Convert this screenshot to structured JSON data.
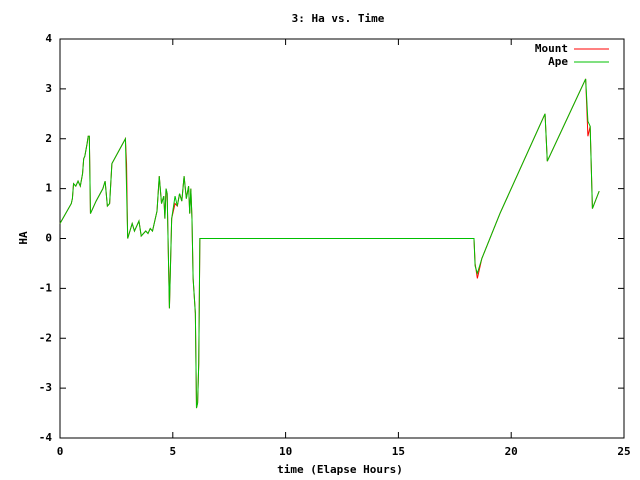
{
  "chart_data": {
    "type": "line",
    "title": "3: Ha vs. Time",
    "x_label": "time (Elapse Hours)",
    "y_label": "HA",
    "x": [
      0,
      0.5,
      0.55,
      0.6,
      0.7,
      0.8,
      0.9,
      1.0,
      1.05,
      1.1,
      1.2,
      1.25,
      1.3,
      1.35,
      1.6,
      1.9,
      2.0,
      2.1,
      2.2,
      2.3,
      2.9,
      2.95,
      3.0,
      3.2,
      3.3,
      3.5,
      3.6,
      3.8,
      3.9,
      4.0,
      4.1,
      4.3,
      4.4,
      4.5,
      4.6,
      4.65,
      4.7,
      4.75,
      4.85,
      4.95,
      5.1,
      5.2,
      5.3,
      5.4,
      5.5,
      5.6,
      5.7,
      5.75,
      5.8,
      5.85,
      5.9,
      6.0,
      6.05,
      6.1,
      6.15,
      6.2,
      18.35,
      18.4,
      18.5,
      18.7,
      19.5,
      21.5,
      21.6,
      23.3,
      23.4,
      23.5,
      23.6,
      23.9
    ],
    "series": [
      {
        "name": "Mount",
        "color": "#ff0000",
        "values": [
          0.3,
          0.7,
          0.8,
          1.1,
          1.05,
          1.15,
          1.05,
          1.3,
          1.6,
          1.65,
          1.9,
          2.05,
          2.05,
          0.5,
          0.75,
          1.0,
          1.15,
          0.65,
          0.7,
          1.5,
          2.0,
          1.5,
          0.0,
          0.3,
          0.15,
          0.35,
          0.05,
          0.15,
          0.1,
          0.2,
          0.15,
          0.55,
          1.25,
          0.7,
          0.85,
          0.4,
          1.0,
          0.9,
          -1.4,
          0.4,
          0.7,
          0.65,
          0.9,
          0.75,
          1.25,
          0.8,
          1.05,
          0.5,
          1.0,
          0.4,
          -0.8,
          -1.5,
          -3.4,
          -3.3,
          -2.5,
          0.0,
          0.0,
          -0.5,
          -0.8,
          -0.4,
          0.5,
          2.5,
          1.55,
          3.2,
          2.05,
          2.25,
          0.6,
          0.95
        ]
      },
      {
        "name": "Ape",
        "color": "#00c000",
        "values": [
          0.3,
          0.7,
          0.8,
          1.1,
          1.05,
          1.15,
          1.05,
          1.3,
          1.6,
          1.65,
          1.9,
          2.05,
          2.05,
          0.5,
          0.75,
          1.0,
          1.15,
          0.65,
          0.7,
          1.5,
          2.0,
          1.0,
          0.0,
          0.3,
          0.15,
          0.35,
          0.05,
          0.15,
          0.1,
          0.2,
          0.15,
          0.55,
          1.25,
          0.7,
          0.85,
          0.4,
          1.0,
          0.9,
          -1.4,
          0.4,
          0.85,
          0.65,
          0.9,
          0.75,
          1.25,
          0.8,
          1.05,
          0.5,
          1.0,
          0.4,
          -0.8,
          -1.5,
          -3.4,
          -3.3,
          -2.5,
          0.0,
          0.0,
          -0.55,
          -0.7,
          -0.4,
          0.5,
          2.5,
          1.55,
          3.2,
          2.35,
          2.25,
          0.6,
          0.95
        ]
      }
    ],
    "xlim": [
      0,
      25
    ],
    "xticks": [
      0,
      5,
      10,
      15,
      20,
      25
    ],
    "ylim": [
      -4,
      4
    ],
    "yticks": [
      -4,
      -3,
      -2,
      -1,
      0,
      1,
      2,
      3,
      4
    ],
    "legend": "top-right"
  }
}
